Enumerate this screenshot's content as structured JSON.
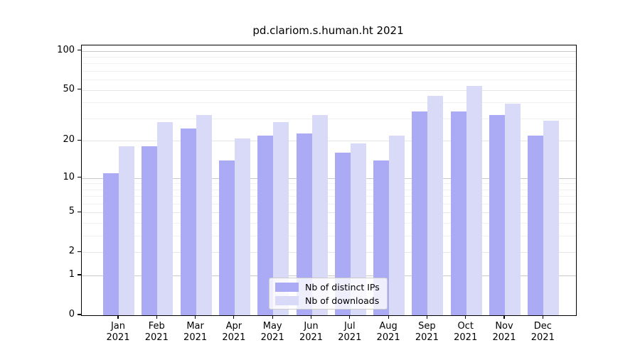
{
  "title": "pd.clariom.s.human.ht 2021",
  "chart_data": {
    "type": "bar",
    "scale": "log1p",
    "title": "pd.clariom.s.human.ht 2021",
    "categories": [
      "Jan",
      "Feb",
      "Mar",
      "Apr",
      "May",
      "Jun",
      "Jul",
      "Aug",
      "Sep",
      "Oct",
      "Nov",
      "Dec"
    ],
    "year_label": "2021",
    "series": [
      {
        "name": "Nb of distinct IPs",
        "color": "#aaaaf5",
        "values": [
          11,
          18,
          25,
          14,
          22,
          23,
          16,
          14,
          34,
          34,
          32,
          22
        ]
      },
      {
        "name": "Nb of downloads",
        "color": "#d9d9f8",
        "values": [
          18,
          28,
          32,
          21,
          28,
          32,
          19,
          22,
          45,
          54,
          39,
          29
        ]
      }
    ],
    "y_ticks": [
      0,
      1,
      2,
      5,
      10,
      20,
      50,
      100
    ],
    "y_minor_gridlines": [
      3,
      4,
      6,
      7,
      8,
      9,
      30,
      40,
      60,
      70,
      80,
      90
    ],
    "ylim": [
      0,
      110
    ],
    "xlabel": "",
    "ylabel": "",
    "grid": "horizontal",
    "legend_position": "bottom-center",
    "colors": {
      "grid_decade": "#c9c9c9",
      "grid_major": "#e5e5e5",
      "grid_minor": "#f1f1f1",
      "axis": "#000000"
    }
  },
  "legend": {
    "items": [
      {
        "label": "Nb of distinct IPs"
      },
      {
        "label": "Nb of downloads"
      }
    ]
  }
}
